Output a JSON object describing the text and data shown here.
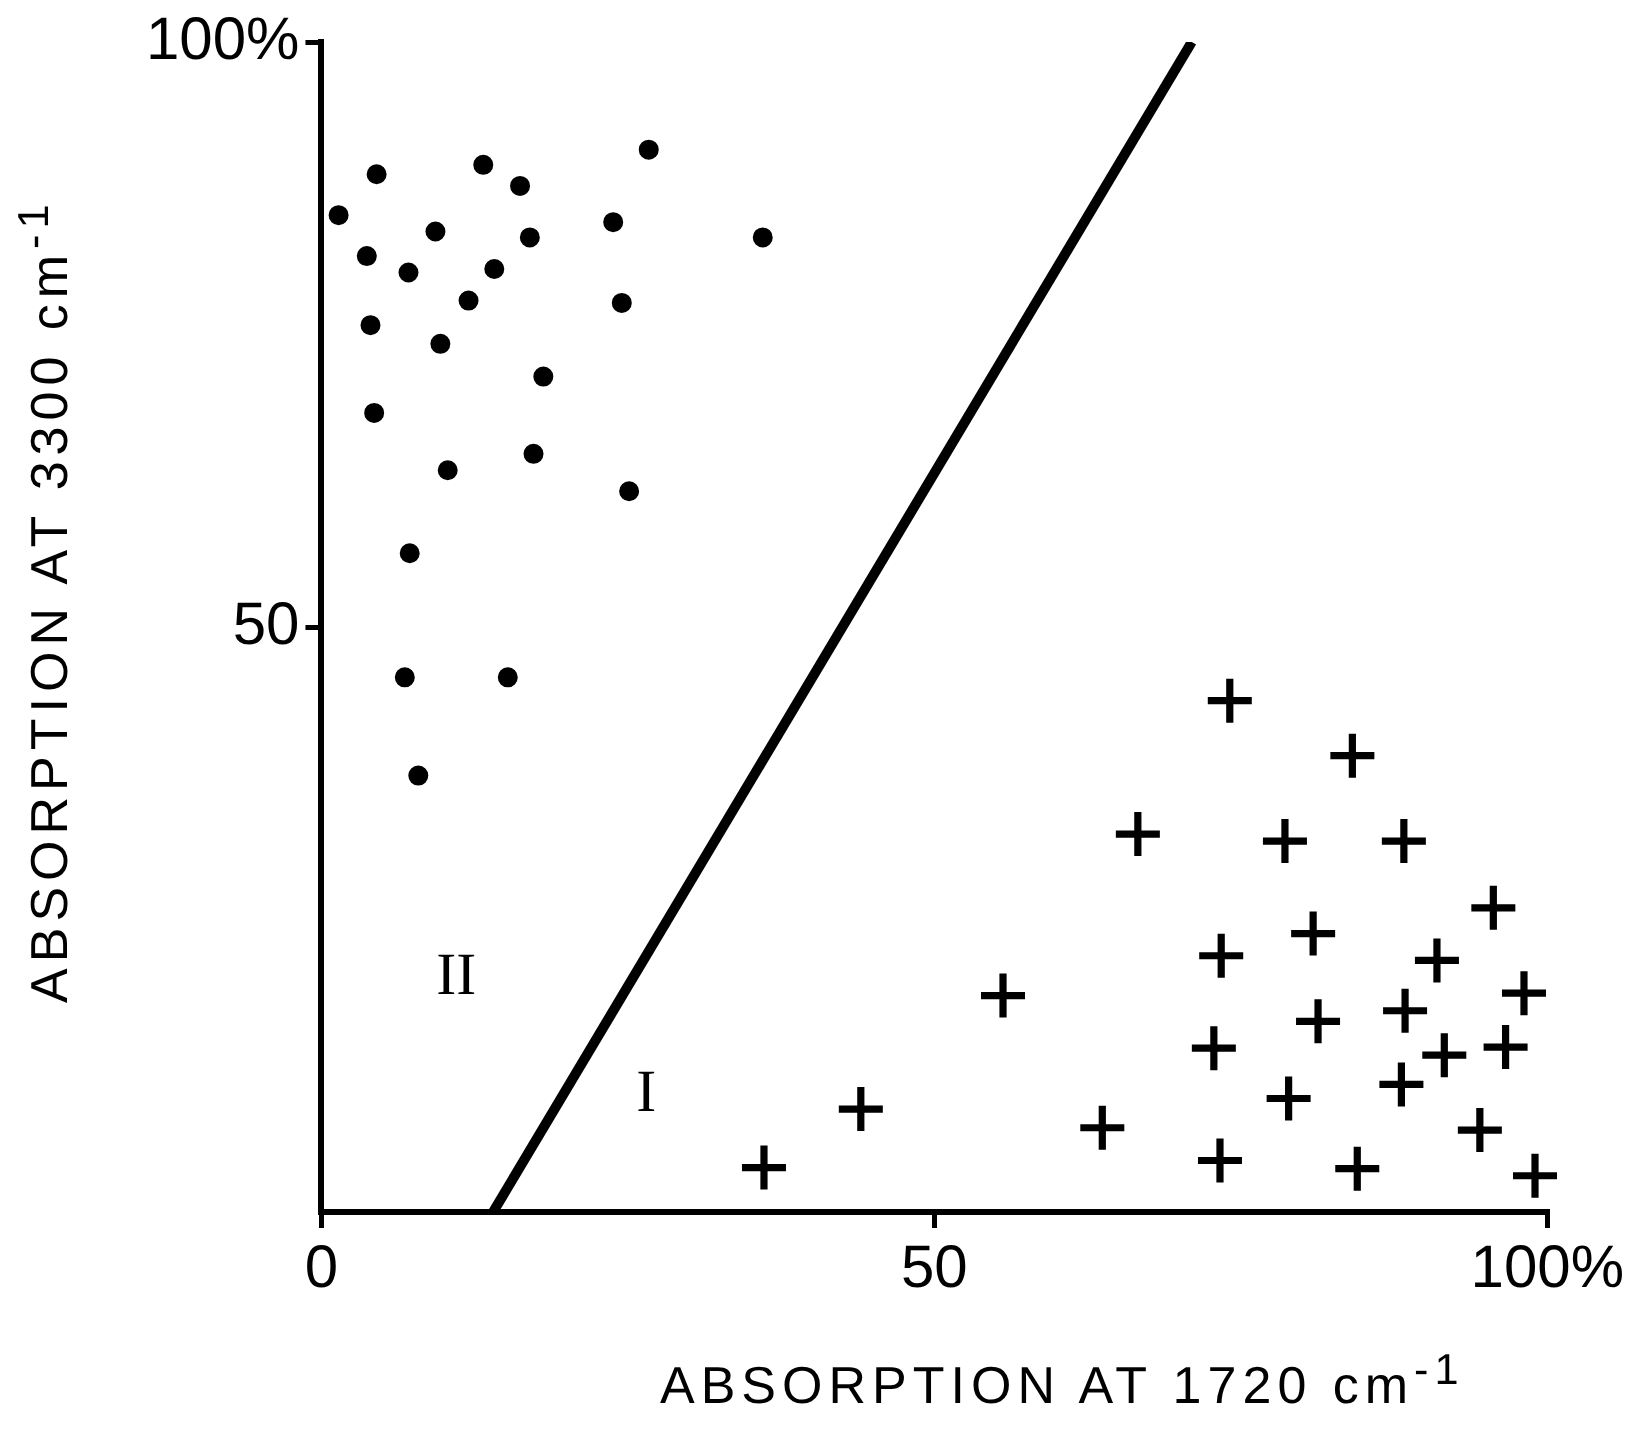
{
  "chart_data": {
    "type": "scatter",
    "xlabel": "ABSORPTION AT 1720 cm$^{-1}$",
    "ylabel": "ABSORPTION AT 3300 cm$^{-1}$",
    "xlim": [
      0,
      100
    ],
    "ylim": [
      0,
      100
    ],
    "xticks": [
      0,
      50,
      {
        "value": 100,
        "label": "100%"
      }
    ],
    "yticks": [
      50,
      {
        "value": 100,
        "label": "100%"
      }
    ],
    "legend": false,
    "series": [
      {
        "marker": "circle",
        "color": "#000000",
        "x": [
          4.5,
          13.2,
          16.2,
          26.7,
          1.4,
          9.3,
          17.0,
          23.8,
          36.0,
          3.7,
          7.1,
          14.1,
          12.0,
          24.5,
          4.0,
          9.7,
          18.1,
          4.3,
          10.3,
          17.3,
          25.1,
          7.2,
          6.8,
          15.2,
          7.9
        ],
        "values": [
          88.7,
          89.5,
          87.7,
          90.8,
          85.2,
          83.8,
          83.3,
          84.6,
          83.3,
          81.7,
          80.3,
          80.6,
          77.9,
          77.7,
          75.8,
          74.2,
          71.4,
          68.3,
          63.4,
          64.8,
          61.6,
          56.3,
          45.7,
          45.7,
          37.3
        ]
      },
      {
        "marker": "cross",
        "color": "#000000",
        "x": [
          74.1,
          84.1,
          66.6,
          78.6,
          88.3,
          95.6,
          80.9,
          73.4,
          91.0,
          55.6,
          98.1,
          81.3,
          88.4,
          72.8,
          91.6,
          96.6,
          88.1,
          78.9,
          44.0,
          63.7,
          94.5,
          73.3,
          36.1,
          84.5,
          99.0
        ],
        "values": [
          43.7,
          39,
          32.3,
          31.7,
          31.7,
          26,
          23.8,
          21.9,
          21.5,
          18.5,
          18.7,
          16.3,
          17.2,
          14,
          13.4,
          14.1,
          10.9,
          9.7,
          8.8,
          7.2,
          7,
          4.4,
          3.8,
          3.7,
          3.1
        ]
      },
      {
        "type": "line",
        "marker": "none",
        "color": "#000000",
        "x": [
          14,
          71
        ],
        "values": [
          0,
          100
        ]
      }
    ],
    "annotations": [
      "II",
      "I"
    ]
  }
}
